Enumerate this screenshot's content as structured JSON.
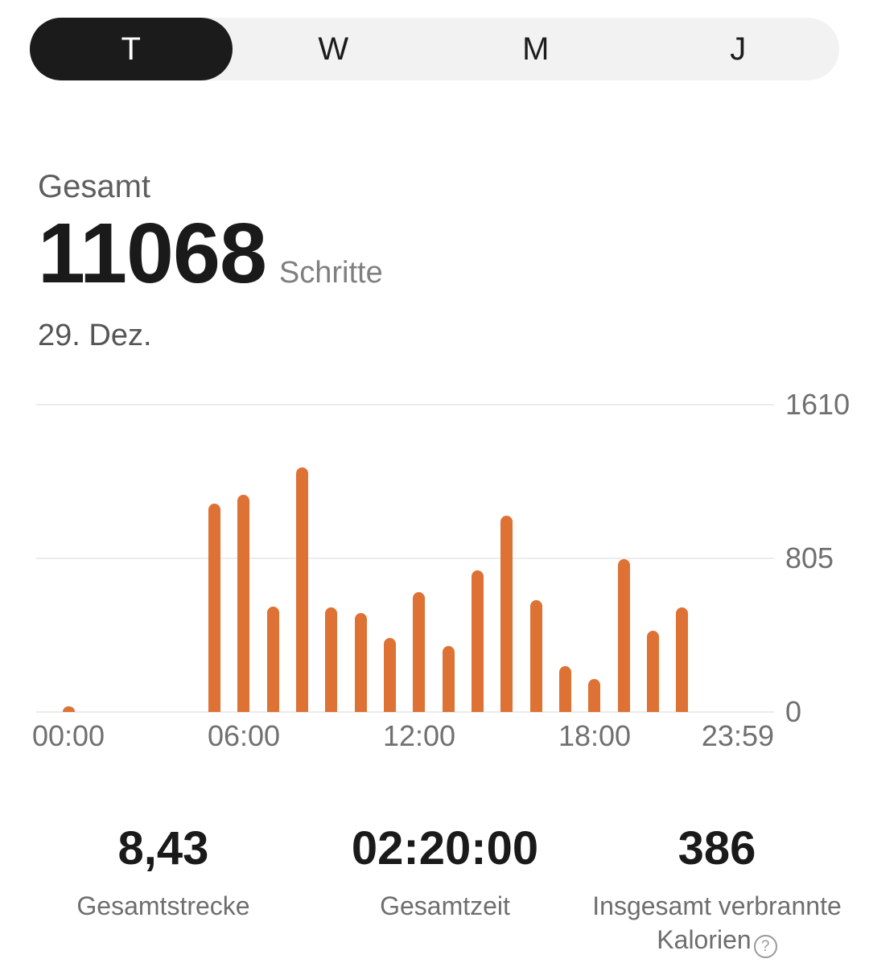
{
  "tabs": {
    "items": [
      {
        "label": "T",
        "selected": true
      },
      {
        "label": "W",
        "selected": false
      },
      {
        "label": "M",
        "selected": false
      },
      {
        "label": "J",
        "selected": false
      }
    ]
  },
  "summary": {
    "label": "Gesamt",
    "steps_value": "11068",
    "steps_unit": "Schritte",
    "date": "29. Dez."
  },
  "chart_data": {
    "type": "bar",
    "title": "",
    "xlabel": "",
    "ylabel": "",
    "ylim": [
      0,
      1610
    ],
    "grid": true,
    "bar_color": "#DE7234",
    "y_ticks": [
      {
        "value": 1610,
        "label": "1610"
      },
      {
        "value": 805,
        "label": "805"
      },
      {
        "value": 0,
        "label": "0"
      }
    ],
    "x_ticks": [
      {
        "hour": 0,
        "label": "00:00"
      },
      {
        "hour": 6,
        "label": "06:00"
      },
      {
        "hour": 12,
        "label": "12:00"
      },
      {
        "hour": 18,
        "label": "18:00"
      },
      {
        "hour": 24,
        "label": "23:59"
      }
    ],
    "bars": [
      {
        "hour": 0,
        "value": 30
      },
      {
        "hour": 5,
        "value": 1090
      },
      {
        "hour": 6,
        "value": 1137
      },
      {
        "hour": 7,
        "value": 553
      },
      {
        "hour": 8,
        "value": 1283
      },
      {
        "hour": 9,
        "value": 550
      },
      {
        "hour": 10,
        "value": 519
      },
      {
        "hour": 11,
        "value": 389
      },
      {
        "hour": 12,
        "value": 628
      },
      {
        "hour": 13,
        "value": 344
      },
      {
        "hour": 14,
        "value": 742
      },
      {
        "hour": 15,
        "value": 1029
      },
      {
        "hour": 16,
        "value": 585
      },
      {
        "hour": 17,
        "value": 242
      },
      {
        "hour": 18,
        "value": 171
      },
      {
        "hour": 19,
        "value": 802
      },
      {
        "hour": 20,
        "value": 424
      },
      {
        "hour": 21,
        "value": 550
      }
    ]
  },
  "stats": {
    "items": [
      {
        "value": "8,43",
        "label": "Gesamtstrecke"
      },
      {
        "value": "02:20:00",
        "label": "Gesamtzeit"
      },
      {
        "value": "386",
        "label_line1": "Insgesamt verbrannte",
        "label_line2": "Kalorien"
      }
    ]
  },
  "icons": {
    "help_glyph": "?"
  },
  "colors": {
    "accent_orange": "#DE7234",
    "tab_selected_bg": "#1B1B1B",
    "tab_bar_bg": "#F2F2F2",
    "gridline": "#ECECEC",
    "axis_text": "#707070"
  }
}
